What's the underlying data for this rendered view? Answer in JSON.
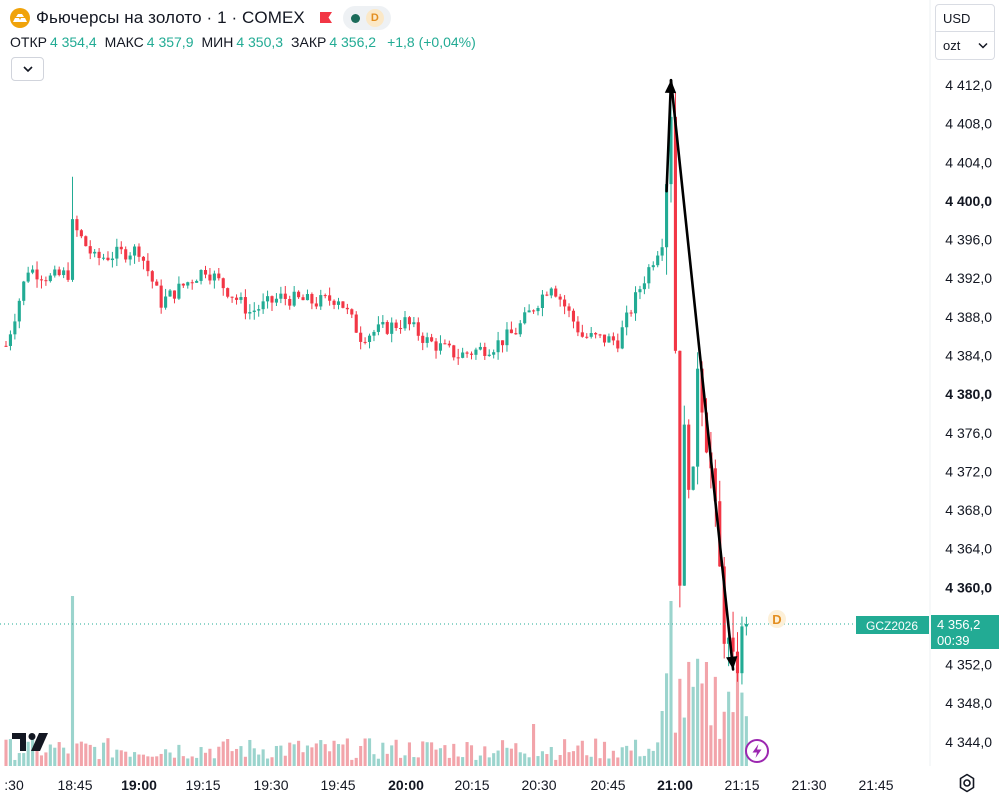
{
  "header": {
    "title": "Фьючерсы на золото · 1 · COMEX",
    "status_badge": "D",
    "ohlc": [
      {
        "label": "ОТКР",
        "value": "4 354,4"
      },
      {
        "label": "МАКС",
        "value": "4 357,9"
      },
      {
        "label": "МИН",
        "value": "4 350,3"
      },
      {
        "label": "ЗАКР",
        "value": "4 356,2"
      }
    ],
    "change": "+1,8 (+0,04%)"
  },
  "controls": {
    "currency": "USD",
    "unit": "ozt"
  },
  "price_tag": {
    "symbol": "GCZ2026",
    "price": "4 356,2",
    "countdown": "00:39"
  },
  "event_badge": "D",
  "colors": {
    "up": "#22ab94",
    "down": "#f23645",
    "up_volume": "#9bd4cd",
    "down_volume": "#f2a4aa",
    "price_line": "#22ab94",
    "gold_icon": "#f0a30a",
    "annotation_arrow": "#000000"
  },
  "chart_data": {
    "type": "candlestick",
    "timeframe": "1",
    "y_ticks": [
      "4 344,0",
      "4 348,0",
      "4 352,0",
      "4 356,0",
      "4 360,0",
      "4 364,0",
      "4 368,0",
      "4 372,0",
      "4 376,0",
      "4 380,0",
      "4 384,0",
      "4 388,0",
      "4 392,0",
      "4 396,0",
      "4 400,0",
      "4 404,0",
      "4 408,0",
      "4 412,0"
    ],
    "y_tick_values": [
      4344,
      4348,
      4352,
      4356,
      4360,
      4364,
      4368,
      4372,
      4376,
      4380,
      4384,
      4388,
      4392,
      4396,
      4400,
      4404,
      4408,
      4412
    ],
    "y_bold_values": [
      4360,
      4380,
      4400
    ],
    "ylim": [
      4343,
      4413
    ],
    "x_ticks": [
      ":30",
      "18:45",
      "19:00",
      "19:15",
      "19:30",
      "19:45",
      "20:00",
      "20:15",
      "20:30",
      "20:45",
      "21:00",
      "21:15",
      "21:30",
      "21:45"
    ],
    "x_bold_ticks": [
      "19:00",
      "20:00",
      "21:00"
    ],
    "last_price": 4356.2,
    "anchors": [
      {
        "t": "18:30",
        "price": 4385.0
      },
      {
        "t": "18:35",
        "price": 4393.0
      },
      {
        "t": "18:40",
        "price": 4392.0
      },
      {
        "t": "18:44",
        "price": 4392.5
      },
      {
        "t": "18:45",
        "price": 4397.5
      },
      {
        "t": "18:50",
        "price": 4394.0
      },
      {
        "t": "19:00",
        "price": 4395.0
      },
      {
        "t": "19:05",
        "price": 4389.5
      },
      {
        "t": "19:15",
        "price": 4393.0
      },
      {
        "t": "19:25",
        "price": 4388.5
      },
      {
        "t": "19:32",
        "price": 4390.0
      },
      {
        "t": "19:40",
        "price": 4389.5
      },
      {
        "t": "19:45",
        "price": 4390.0
      },
      {
        "t": "19:50",
        "price": 4386.0
      },
      {
        "t": "20:00",
        "price": 4387.5
      },
      {
        "t": "20:05",
        "price": 4385.5
      },
      {
        "t": "20:12",
        "price": 4384.0
      },
      {
        "t": "20:20",
        "price": 4385.0
      },
      {
        "t": "20:25",
        "price": 4386.5
      },
      {
        "t": "20:33",
        "price": 4391.5
      },
      {
        "t": "20:40",
        "price": 4386.0
      },
      {
        "t": "20:48",
        "price": 4385.5
      },
      {
        "t": "20:53",
        "price": 4391.0
      },
      {
        "t": "20:58",
        "price": 4396.0
      },
      {
        "t": "20:59",
        "price": 4403.0
      },
      {
        "t": "21:00",
        "price": 4410.0
      },
      {
        "t": "21:01",
        "price": 4385.0
      },
      {
        "t": "21:02",
        "price": 4362.0
      },
      {
        "t": "21:03",
        "price": 4375.0
      },
      {
        "t": "21:05",
        "price": 4370.0
      },
      {
        "t": "21:06",
        "price": 4384.0
      },
      {
        "t": "21:09",
        "price": 4372.0
      },
      {
        "t": "21:12",
        "price": 4356.0
      },
      {
        "t": "21:14",
        "price": 4351.0
      },
      {
        "t": "21:17",
        "price": 4356.2
      }
    ],
    "annotation_arrows": [
      {
        "from": {
          "t": "20:59",
          "price": 4401.0
        },
        "to": {
          "t": "21:00",
          "price": 4412.5
        }
      },
      {
        "from": {
          "t": "21:00",
          "price": 4412.5
        },
        "to": {
          "t": "21:14",
          "price": 4351.5
        }
      }
    ]
  }
}
